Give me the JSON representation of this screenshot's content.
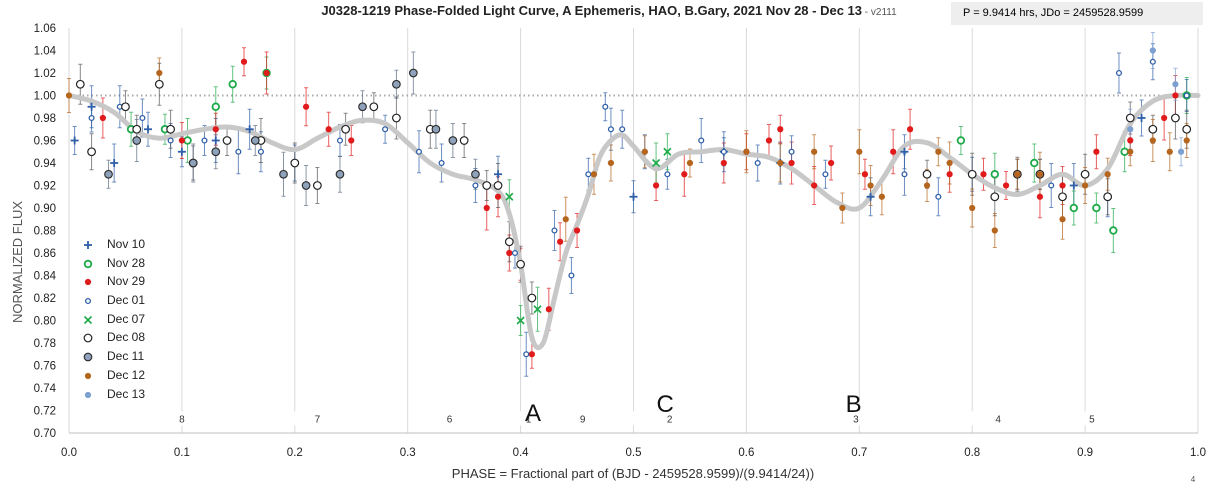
{
  "title": {
    "main": "J0328-1219 Phase-Folded Light Curve, A Ephemeris, HAO, B.Gary, 2021 Nov 28 - Dec 13",
    "version": " - v2111"
  },
  "info_box": "P = 9.9414 hrs, JDo = 2459528.9599",
  "page_number": "4",
  "colors": {
    "nov10": "#2e5fa8",
    "nov28": "#1faa4a",
    "nov29": "#e11b1b",
    "dec01": "#2e5fa8",
    "dec07": "#1faa4a",
    "dec08": "#222222",
    "dec11": "#5a6b80",
    "dec12": "#b5651d",
    "dec13": "#7da0d0",
    "fit": "#c8c8c8",
    "reference": "#aaaaaa",
    "grid": "#d9d9d9"
  },
  "chart_data": {
    "type": "scatter",
    "xlabel": "PHASE = Fractional part of (BJD - 2459528.9599)/(9.9414/24))",
    "ylabel": "NORMALIZED FLUX",
    "xlim": [
      0.0,
      1.0
    ],
    "ylim": [
      0.7,
      1.06
    ],
    "x_ticks": [
      "0.0",
      "0.1",
      "0.2",
      "0.3",
      "0.4",
      "0.5",
      "0.6",
      "0.7",
      "0.8",
      "0.9",
      "1.0"
    ],
    "y_ticks": [
      "0.70",
      "0.72",
      "0.74",
      "0.76",
      "0.78",
      "0.80",
      "0.82",
      "0.84",
      "0.86",
      "0.88",
      "0.90",
      "0.92",
      "0.94",
      "0.96",
      "0.98",
      "1.00",
      "1.02",
      "1.04",
      "1.06"
    ],
    "grid": "vertical",
    "reference_line_y": 1.0,
    "legend_position": "bottom-left",
    "annotations": [
      {
        "text": "A",
        "x": 0.411,
        "y": 0.718
      },
      {
        "text": "C",
        "x": 0.528,
        "y": 0.726
      },
      {
        "text": "B",
        "x": 0.695,
        "y": 0.726
      }
    ],
    "fragment_labels": [
      {
        "text": "8",
        "x": 0.1
      },
      {
        "text": "7",
        "x": 0.22
      },
      {
        "text": "6",
        "x": 0.337
      },
      {
        "text": "1",
        "x": 0.407
      },
      {
        "text": "9",
        "x": 0.455
      },
      {
        "text": "2",
        "x": 0.532
      },
      {
        "text": "3",
        "x": 0.697
      },
      {
        "text": "4",
        "x": 0.823
      },
      {
        "text": "5",
        "x": 0.906
      }
    ],
    "fit_curve": {
      "x": [
        0.0,
        0.02,
        0.04,
        0.06,
        0.08,
        0.1,
        0.12,
        0.14,
        0.16,
        0.18,
        0.2,
        0.22,
        0.24,
        0.26,
        0.28,
        0.3,
        0.32,
        0.34,
        0.36,
        0.38,
        0.39,
        0.4,
        0.41,
        0.42,
        0.43,
        0.44,
        0.45,
        0.46,
        0.47,
        0.48,
        0.49,
        0.5,
        0.52,
        0.54,
        0.56,
        0.58,
        0.6,
        0.62,
        0.64,
        0.66,
        0.68,
        0.7,
        0.72,
        0.74,
        0.76,
        0.78,
        0.8,
        0.82,
        0.84,
        0.86,
        0.88,
        0.9,
        0.92,
        0.94,
        0.96,
        0.98,
        1.0
      ],
      "y": [
        1.0,
        0.995,
        0.985,
        0.968,
        0.962,
        0.966,
        0.97,
        0.972,
        0.968,
        0.958,
        0.952,
        0.962,
        0.972,
        0.978,
        0.975,
        0.958,
        0.94,
        0.93,
        0.925,
        0.915,
        0.895,
        0.85,
        0.785,
        0.78,
        0.82,
        0.86,
        0.885,
        0.912,
        0.945,
        0.96,
        0.965,
        0.955,
        0.935,
        0.948,
        0.95,
        0.952,
        0.948,
        0.945,
        0.935,
        0.92,
        0.905,
        0.9,
        0.925,
        0.955,
        0.958,
        0.945,
        0.93,
        0.918,
        0.912,
        0.92,
        0.93,
        0.92,
        0.935,
        0.975,
        0.995,
        1.0,
        1.0
      ]
    },
    "series": [
      {
        "name": "Nov 10",
        "marker": "plus",
        "color": "#2e5fa8",
        "x": [
          0.005,
          0.02,
          0.04,
          0.07,
          0.1,
          0.13,
          0.16,
          0.38,
          0.5,
          0.58,
          0.63,
          0.71,
          0.74,
          0.86,
          0.89,
          0.92,
          0.95
        ],
        "y": [
          0.96,
          0.99,
          0.94,
          0.97,
          0.95,
          0.96,
          0.97,
          0.93,
          0.91,
          0.95,
          0.94,
          0.91,
          0.95,
          0.93,
          0.92,
          0.91,
          0.98
        ]
      },
      {
        "name": "Nov 28",
        "marker": "circle-open",
        "color": "#1faa4a",
        "x": [
          0.055,
          0.085,
          0.105,
          0.13,
          0.145,
          0.175,
          0.79,
          0.82,
          0.855,
          0.89,
          0.91,
          0.925,
          0.935,
          0.99
        ],
        "y": [
          0.97,
          0.97,
          0.96,
          0.99,
          1.01,
          1.02,
          0.96,
          0.93,
          0.94,
          0.9,
          0.9,
          0.88,
          0.95,
          1.0
        ]
      },
      {
        "name": "Nov 29",
        "marker": "circle-filled",
        "color": "#e11b1b",
        "x": [
          0.03,
          0.1,
          0.13,
          0.155,
          0.175,
          0.21,
          0.23,
          0.25,
          0.37,
          0.38,
          0.39,
          0.4,
          0.41,
          0.425,
          0.435,
          0.45,
          0.52,
          0.545,
          0.58,
          0.6,
          0.62,
          0.63,
          0.64,
          0.66,
          0.675,
          0.705,
          0.73,
          0.745,
          0.78,
          0.81,
          0.83,
          0.86,
          0.88,
          0.91,
          0.94,
          0.97,
          0.98
        ],
        "y": [
          0.98,
          0.96,
          0.97,
          1.03,
          1.02,
          0.99,
          0.97,
          0.96,
          0.9,
          0.91,
          0.86,
          0.85,
          0.77,
          0.81,
          0.87,
          0.88,
          0.92,
          0.93,
          0.94,
          0.95,
          0.96,
          0.97,
          0.94,
          0.92,
          0.94,
          0.93,
          0.95,
          0.97,
          0.93,
          0.93,
          0.92,
          0.91,
          0.92,
          0.95,
          0.96,
          0.98,
          1.0
        ]
      },
      {
        "name": "Dec 01",
        "marker": "circle-open-small",
        "color": "#2e5fa8",
        "x": [
          0.02,
          0.045,
          0.065,
          0.09,
          0.12,
          0.15,
          0.17,
          0.2,
          0.24,
          0.28,
          0.31,
          0.33,
          0.36,
          0.395,
          0.405,
          0.43,
          0.445,
          0.46,
          0.475,
          0.48,
          0.49,
          0.51,
          0.53,
          0.56,
          0.58,
          0.61,
          0.64,
          0.67,
          0.74,
          0.77,
          0.8,
          0.84,
          0.87,
          0.93,
          0.96,
          0.99
        ],
        "y": [
          0.98,
          0.99,
          0.98,
          0.96,
          0.96,
          0.95,
          0.95,
          0.94,
          0.96,
          0.97,
          0.95,
          0.94,
          0.92,
          0.86,
          0.77,
          0.88,
          0.84,
          0.93,
          0.99,
          0.97,
          0.97,
          0.95,
          0.93,
          0.96,
          0.95,
          0.94,
          0.95,
          0.93,
          0.93,
          0.91,
          0.93,
          0.93,
          0.92,
          1.02,
          1.03,
          1.0
        ]
      },
      {
        "name": "Dec 07",
        "marker": "x",
        "color": "#1faa4a",
        "x": [
          0.39,
          0.4,
          0.415,
          0.52,
          0.53
        ],
        "y": [
          0.91,
          0.8,
          0.81,
          0.94,
          0.95
        ]
      },
      {
        "name": "Dec 08",
        "marker": "circle-open-black",
        "color": "#222222",
        "x": [
          0.01,
          0.02,
          0.05,
          0.06,
          0.08,
          0.09,
          0.11,
          0.14,
          0.17,
          0.2,
          0.22,
          0.245,
          0.27,
          0.29,
          0.32,
          0.35,
          0.37,
          0.38,
          0.39,
          0.4,
          0.41,
          0.76,
          0.8,
          0.82,
          0.84,
          0.86,
          0.88,
          0.9,
          0.92,
          0.94,
          0.96,
          0.98,
          0.99
        ],
        "y": [
          1.01,
          0.95,
          0.99,
          0.97,
          1.01,
          0.97,
          0.94,
          0.96,
          0.96,
          0.94,
          0.92,
          0.97,
          0.99,
          0.98,
          0.97,
          0.96,
          0.92,
          0.92,
          0.87,
          0.85,
          0.82,
          0.93,
          0.93,
          0.91,
          0.93,
          0.93,
          0.91,
          0.93,
          0.91,
          0.98,
          0.97,
          0.98,
          0.97
        ]
      },
      {
        "name": "Dec 11",
        "marker": "circle-filled-gray",
        "color": "#5a6b80",
        "x": [
          0.035,
          0.06,
          0.11,
          0.13,
          0.165,
          0.19,
          0.21,
          0.24,
          0.26,
          0.29,
          0.305,
          0.325,
          0.34,
          0.36
        ],
        "y": [
          0.93,
          0.96,
          0.94,
          0.95,
          0.96,
          0.93,
          0.92,
          0.93,
          0.99,
          1.01,
          1.02,
          0.97,
          0.96,
          0.93
        ]
      },
      {
        "name": "Dec 12",
        "marker": "circle-filled",
        "color": "#b5651d",
        "x": [
          0.0,
          0.08,
          0.44,
          0.465,
          0.48,
          0.51,
          0.55,
          0.6,
          0.63,
          0.66,
          0.685,
          0.7,
          0.71,
          0.72,
          0.76,
          0.77,
          0.78,
          0.8,
          0.82,
          0.84,
          0.86,
          0.88,
          0.9,
          0.92,
          0.94,
          0.96,
          0.975,
          0.99
        ],
        "y": [
          1.0,
          1.02,
          0.89,
          0.93,
          0.94,
          0.95,
          0.94,
          0.95,
          0.94,
          0.95,
          0.9,
          0.95,
          0.92,
          0.91,
          0.92,
          0.95,
          0.94,
          0.9,
          0.88,
          0.93,
          0.93,
          0.89,
          0.92,
          0.93,
          0.95,
          0.96,
          0.95,
          0.96
        ]
      },
      {
        "name": "Dec 13",
        "marker": "circle-filled",
        "color": "#7da0d0",
        "x": [
          0.94,
          0.96,
          0.98,
          0.985
        ],
        "y": [
          0.97,
          1.04,
          1.01,
          0.95
        ]
      }
    ]
  }
}
